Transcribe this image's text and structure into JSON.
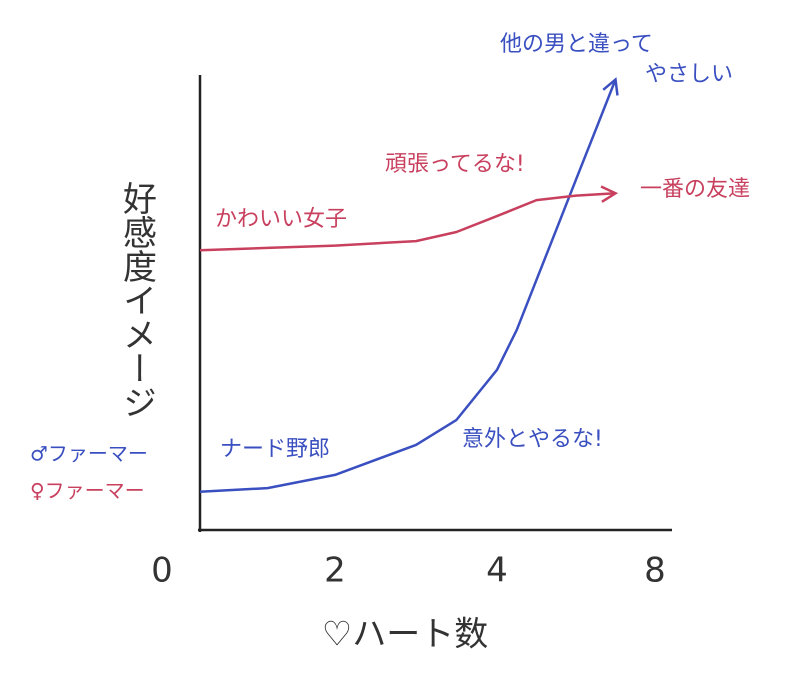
{
  "chart_data": {
    "type": "line",
    "x_label": "♡ハート数",
    "y_label": "好感度イメージ",
    "xlim": [
      0,
      8
    ],
    "xticks": [
      0,
      2,
      4,
      8
    ],
    "ylim": [
      0,
      100
    ],
    "series": [
      {
        "name": "♂ファーマー",
        "color": "#3a4fc0",
        "x": [
          0,
          1,
          2,
          3,
          3.5,
          4,
          4.5,
          5,
          5.5,
          6,
          6.5,
          7
        ],
        "values": [
          8.4,
          9.2,
          12.1,
          18.7,
          24.2,
          35.2,
          44,
          55,
          66,
          77,
          88,
          99
        ]
      },
      {
        "name": "♀ファーマー",
        "color": "#c8405e",
        "x": [
          0,
          1,
          2,
          3,
          3.5,
          4,
          5,
          6,
          7
        ],
        "values": [
          61.5,
          62,
          62.5,
          63.5,
          65.5,
          69,
          72.5,
          73.5,
          74
        ]
      }
    ],
    "annotations": [
      {
        "text": "かわいい女子",
        "color": "#c8405e"
      },
      {
        "text": "頑張ってるな!",
        "color": "#c8405e"
      },
      {
        "text": "一番の友達",
        "color": "#c8405e"
      },
      {
        "text": "ナード野郎",
        "color": "#3a4fc0"
      },
      {
        "text": "意外とやるな!",
        "color": "#3a4fc0"
      },
      {
        "text": "他の男と違って",
        "color": "#3a4fc0"
      },
      {
        "text": "やさしい",
        "color": "#3a4fc0"
      }
    ]
  }
}
